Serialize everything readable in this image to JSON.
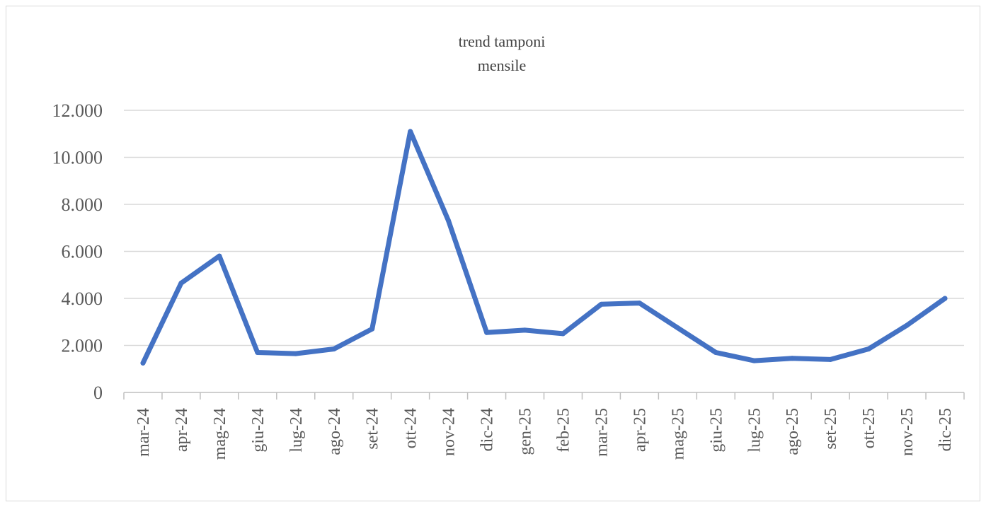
{
  "chart_data": {
    "type": "line",
    "title_lines": [
      "trend tamponi",
      "mensile"
    ],
    "xlabel": "",
    "ylabel": "",
    "categories": [
      "mar-24",
      "apr-24",
      "mag-24",
      "giu-24",
      "lug-24",
      "ago-24",
      "set-24",
      "ott-24",
      "nov-24",
      "dic-24",
      "gen-25",
      "feb-25",
      "mar-25",
      "apr-25",
      "mag-25",
      "giu-25",
      "lug-25",
      "ago-25",
      "set-25",
      "ott-25",
      "nov-25",
      "dic-25"
    ],
    "series": [
      {
        "color": "#4472c4",
        "values": [
          1250,
          4650,
          5800,
          1700,
          1650,
          1850,
          2700,
          11100,
          7300,
          2550,
          2650,
          2500,
          3750,
          3800,
          2750,
          1700,
          1350,
          1450,
          1400,
          1850,
          2850,
          4000
        ]
      }
    ],
    "ylim": [
      0,
      12000
    ],
    "yticks": [
      0,
      2000,
      4000,
      6000,
      8000,
      10000,
      12000
    ],
    "ytick_labels": [
      "0",
      "2.000",
      "4.000",
      "6.000",
      "8.000",
      "10.000",
      "12.000"
    ],
    "grid": true,
    "legend": "none",
    "gridline_color": "#d9d9d9",
    "axis_color": "#bfbfbf"
  }
}
